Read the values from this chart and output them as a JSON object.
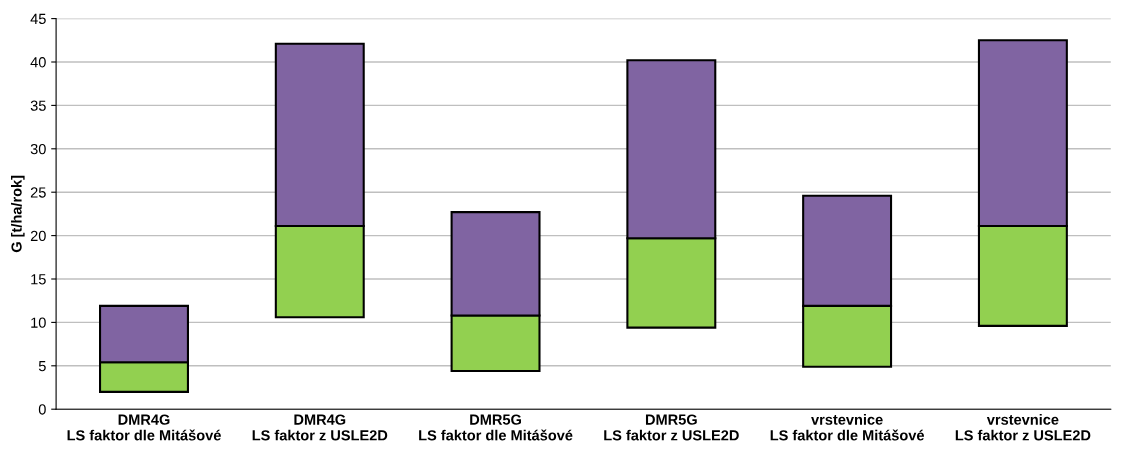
{
  "chart_data": {
    "type": "bar",
    "ylabel": "G [t/ha/rok]",
    "categories": [
      "DMR4G\nLS faktor dle Mitášové",
      "DMR4G\nLS faktor z USLE2D",
      "DMR5G\nLS faktor dle Mitášové",
      "DMR5G\nLS faktor z USLE2D",
      "vrstevnice\nLS faktor dle Mitášové",
      "vrstevnice\nLS faktor z USLE2D"
    ],
    "series": [
      {
        "color": "#92d050",
        "base": [
          2.0,
          10.6,
          4.4,
          9.4,
          4.9,
          9.6
        ],
        "values": [
          3.4,
          10.5,
          6.4,
          10.3,
          7.0,
          11.5
        ]
      },
      {
        "color": "#8064a2",
        "base": [
          5.4,
          21.1,
          10.8,
          19.7,
          11.9,
          21.1
        ],
        "values": [
          6.5,
          21.0,
          11.9,
          20.5,
          12.7,
          21.4
        ]
      }
    ],
    "ylim": [
      0,
      45
    ],
    "yticks": [
      0,
      5,
      10,
      15,
      20,
      25,
      30,
      35,
      40,
      45
    ],
    "grid": "y"
  }
}
